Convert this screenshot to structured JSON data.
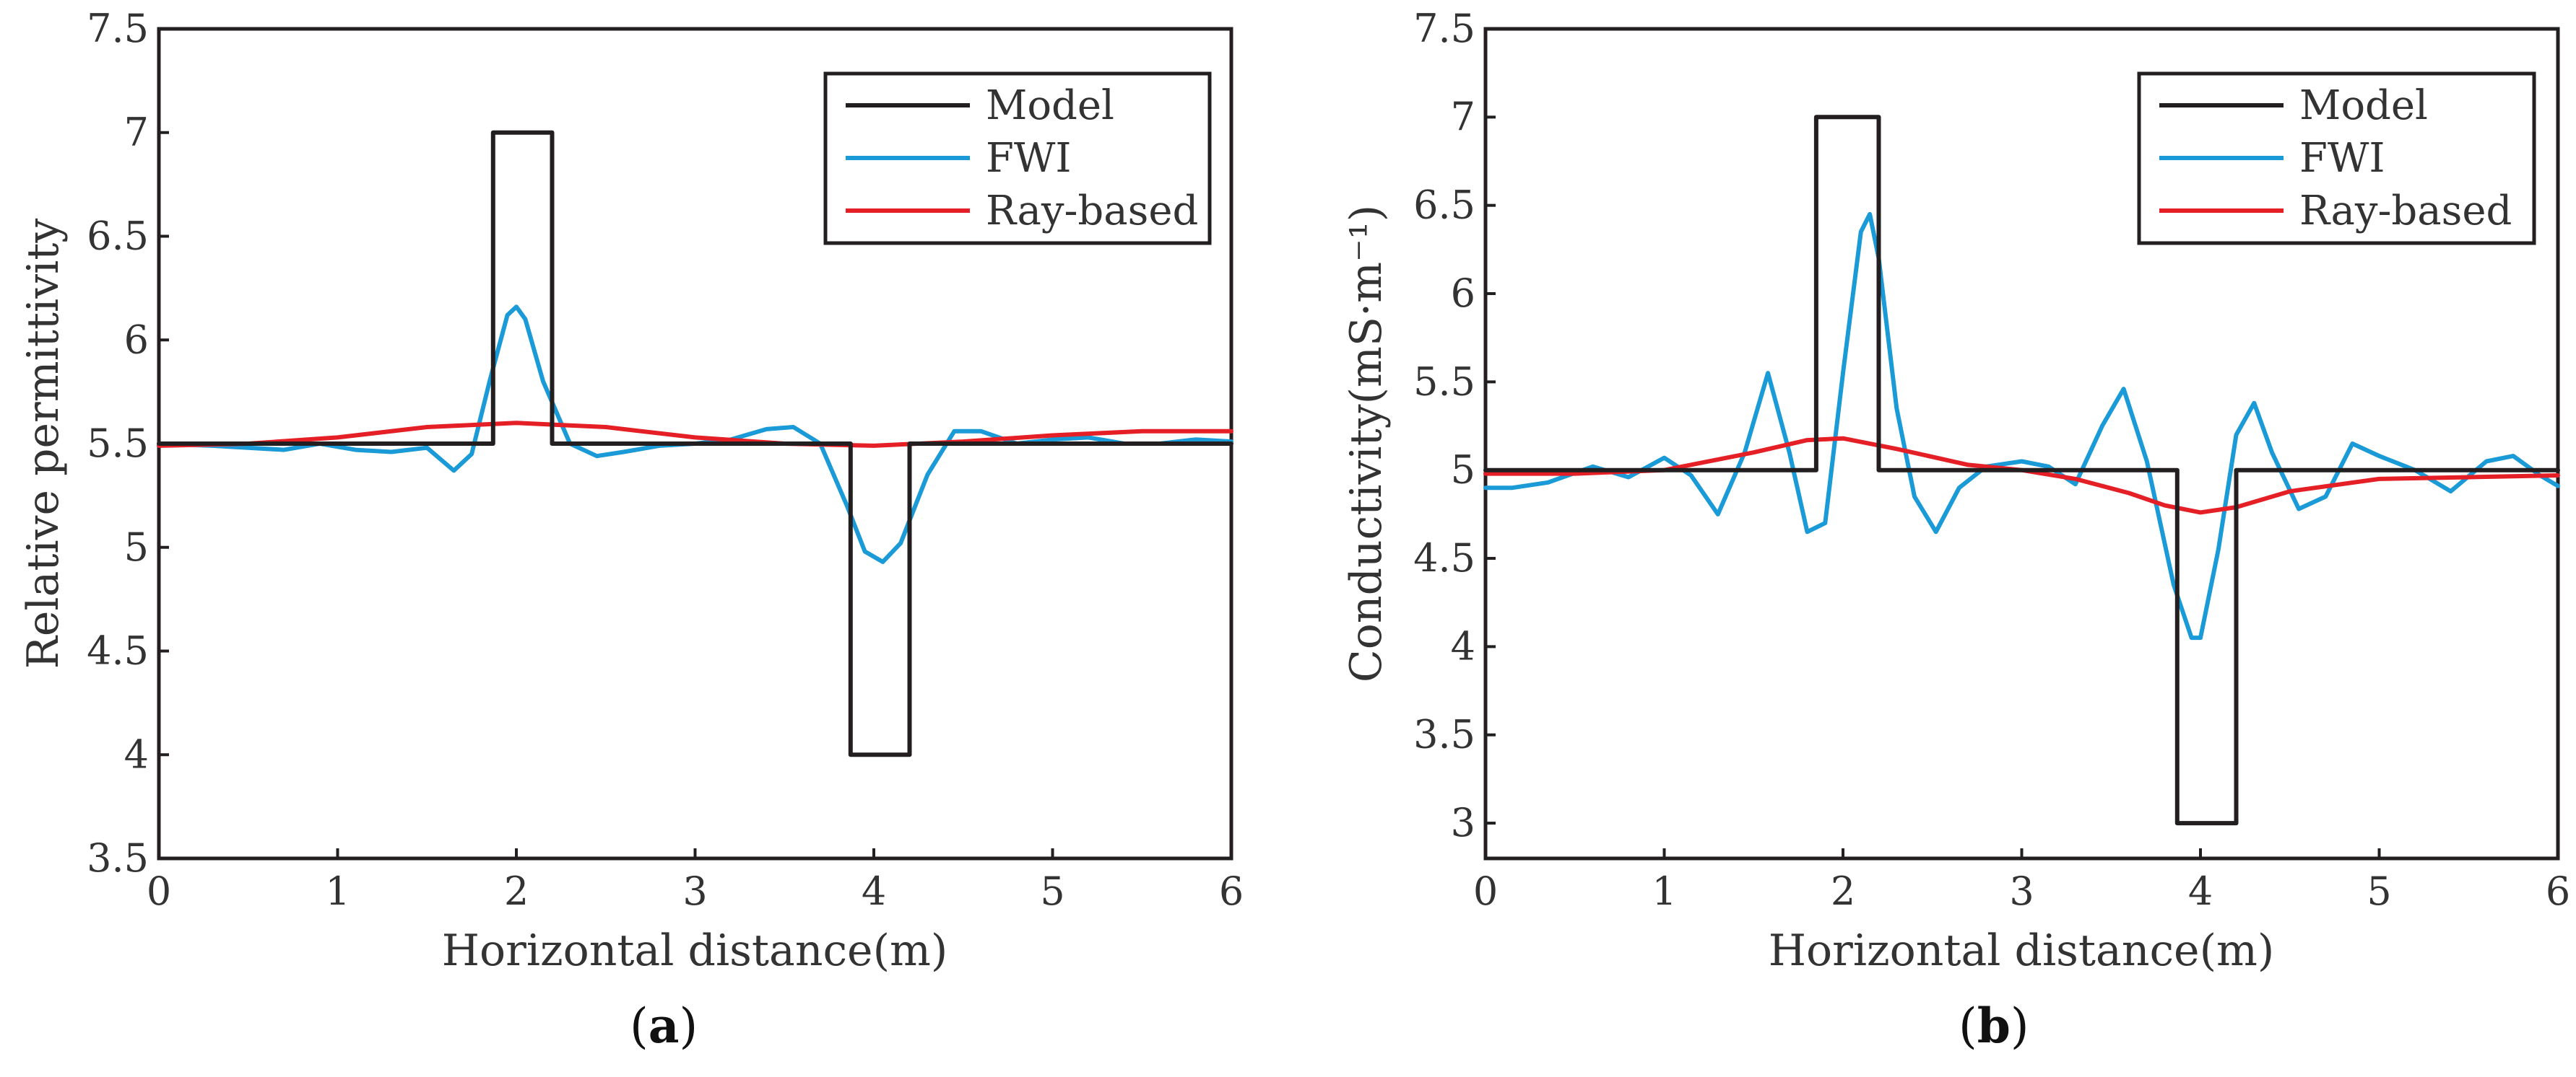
{
  "chart_data": [
    {
      "type": "line",
      "panel_label": "a",
      "title": "",
      "xlabel": "Horizontal distance(m)",
      "ylabel": "Relative permittivity",
      "xlim": [
        0,
        6
      ],
      "ylim": [
        3.5,
        7.5
      ],
      "xticks": [
        "0",
        "1",
        "2",
        "3",
        "4",
        "5",
        "6"
      ],
      "yticks": [
        "3.5",
        "4",
        "4.5",
        "5",
        "5.5",
        "6",
        "6.5",
        "7",
        "7.5"
      ],
      "grid": false,
      "legend_position": "top-right",
      "series": [
        {
          "name": "Model",
          "color": "#231f20",
          "x": [
            0,
            1.87,
            1.87,
            2.2,
            2.2,
            3.87,
            3.87,
            4.2,
            4.2,
            6
          ],
          "y": [
            5.5,
            5.5,
            7.0,
            7.0,
            5.5,
            5.5,
            4.0,
            4.0,
            5.5,
            5.5
          ]
        },
        {
          "name": "FWI",
          "color": "#1a9ad6",
          "x": [
            0,
            0.3,
            0.5,
            0.7,
            0.9,
            1.1,
            1.3,
            1.5,
            1.65,
            1.75,
            1.85,
            1.95,
            2.0,
            2.05,
            2.15,
            2.3,
            2.45,
            2.6,
            2.8,
            3.0,
            3.2,
            3.4,
            3.55,
            3.7,
            3.85,
            3.95,
            4.05,
            4.15,
            4.3,
            4.45,
            4.6,
            4.8,
            5.0,
            5.2,
            5.4,
            5.6,
            5.8,
            6
          ],
          "y": [
            5.5,
            5.49,
            5.48,
            5.47,
            5.5,
            5.47,
            5.46,
            5.48,
            5.37,
            5.45,
            5.8,
            6.12,
            6.16,
            6.1,
            5.8,
            5.5,
            5.44,
            5.46,
            5.49,
            5.5,
            5.52,
            5.57,
            5.58,
            5.5,
            5.2,
            4.98,
            4.93,
            5.02,
            5.35,
            5.56,
            5.56,
            5.5,
            5.52,
            5.53,
            5.5,
            5.5,
            5.52,
            5.51
          ]
        },
        {
          "name": "Ray-based",
          "color": "#e41f26",
          "x": [
            0,
            0.5,
            1.0,
            1.5,
            2.0,
            2.5,
            3.0,
            3.5,
            4.0,
            4.5,
            5.0,
            5.5,
            6
          ],
          "y": [
            5.49,
            5.5,
            5.53,
            5.58,
            5.6,
            5.58,
            5.53,
            5.5,
            5.49,
            5.51,
            5.54,
            5.56,
            5.56
          ]
        }
      ]
    },
    {
      "type": "line",
      "panel_label": "b",
      "title": "",
      "xlabel": "Horizontal distance(m)",
      "ylabel": "Conductivity(mS·m⁻¹)",
      "xlim": [
        0,
        6
      ],
      "ylim": [
        2.8,
        7.5
      ],
      "xticks": [
        "0",
        "1",
        "2",
        "3",
        "4",
        "5",
        "6"
      ],
      "yticks": [
        "3",
        "3.5",
        "4",
        "4.5",
        "5",
        "5.5",
        "6",
        "6.5",
        "7",
        "7.5"
      ],
      "grid": false,
      "legend_position": "top-right",
      "series": [
        {
          "name": "Model",
          "color": "#231f20",
          "x": [
            0,
            1.85,
            1.85,
            2.2,
            2.2,
            3.87,
            3.87,
            4.2,
            4.2,
            6
          ],
          "y": [
            5.0,
            5.0,
            7.0,
            7.0,
            5.0,
            5.0,
            3.0,
            3.0,
            5.0,
            5.0
          ]
        },
        {
          "name": "FWI",
          "color": "#1a9ad6",
          "x": [
            0,
            0.15,
            0.35,
            0.6,
            0.8,
            1.0,
            1.15,
            1.3,
            1.45,
            1.58,
            1.7,
            1.8,
            1.9,
            2.0,
            2.1,
            2.15,
            2.2,
            2.3,
            2.4,
            2.52,
            2.65,
            2.8,
            3.0,
            3.15,
            3.3,
            3.45,
            3.57,
            3.7,
            3.85,
            3.95,
            4.0,
            4.1,
            4.2,
            4.3,
            4.4,
            4.55,
            4.7,
            4.85,
            5.0,
            5.2,
            5.4,
            5.6,
            5.75,
            5.9,
            6
          ],
          "y": [
            4.9,
            4.9,
            4.93,
            5.02,
            4.96,
            5.07,
            4.97,
            4.75,
            5.1,
            5.55,
            5.1,
            4.65,
            4.7,
            5.55,
            6.35,
            6.45,
            6.2,
            5.35,
            4.85,
            4.65,
            4.9,
            5.02,
            5.05,
            5.02,
            4.92,
            5.25,
            5.46,
            5.05,
            4.35,
            4.05,
            4.05,
            4.55,
            5.2,
            5.38,
            5.1,
            4.78,
            4.85,
            5.15,
            5.08,
            5.0,
            4.88,
            5.05,
            5.08,
            4.97,
            4.91
          ]
        },
        {
          "name": "Ray-based",
          "color": "#e41f26",
          "x": [
            0,
            0.5,
            1.0,
            1.5,
            1.8,
            2.0,
            2.3,
            2.7,
            3.0,
            3.3,
            3.6,
            3.8,
            4.0,
            4.2,
            4.5,
            5.0,
            5.5,
            6
          ],
          "y": [
            4.98,
            4.98,
            5.0,
            5.1,
            5.17,
            5.18,
            5.12,
            5.03,
            5.0,
            4.95,
            4.87,
            4.8,
            4.76,
            4.79,
            4.88,
            4.95,
            4.96,
            4.97
          ]
        }
      ]
    }
  ],
  "colors": {
    "axis": "#231f20",
    "text": "#333333"
  }
}
